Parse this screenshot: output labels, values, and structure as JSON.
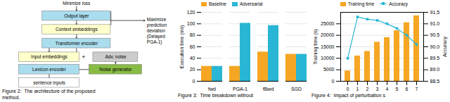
{
  "chart_data": [
    {
      "type": "diagram",
      "title": "Figure 2:  The architecture of the proposed",
      "subtitle": "method.",
      "annotations": [
        "Output layer",
        "Context embeddings",
        "Transformer encoder",
        "Input embeddings",
        "Lexicon encoder",
        "sentence inputs",
        "Adv. noise",
        "Noise generator",
        "+",
        "Minimize loss",
        "Maximize\nprediction\ndeviation\n(Delayed\nPGA-1)"
      ],
      "colors": [
        "#aaddee",
        "#ffffcc",
        "#aaddee",
        "#ffffcc",
        "#aaddee",
        "#ffffff",
        "#cccccc",
        "#88bb44"
      ]
    },
    {
      "type": "bar",
      "title": "Figure 3:  Time breakdown without",
      "categories": [
        "fwd",
        "PGA-1",
        "fBwd",
        "SGD"
      ],
      "series": [
        {
          "name": "Baseline",
          "color": "#f5a623",
          "values": [
            26,
            26,
            51,
            47
          ]
        },
        {
          "name": "Adversarial",
          "color": "#29b6d4",
          "values": [
            26,
            101,
            97,
            47
          ]
        }
      ],
      "ylabel": "Execution time (ms)",
      "ylim": [
        0,
        120
      ],
      "yticks": [
        0,
        20,
        40,
        60,
        80,
        100,
        120
      ],
      "grid": true,
      "legend": "upper left"
    },
    {
      "type": "bar",
      "title": "Figure 4:  Impact of perturbation s",
      "categories": [
        0,
        1,
        2,
        3,
        4,
        5,
        6,
        7
      ],
      "series": [
        {
          "name": "Training time",
          "type": "bar",
          "color": "#f5a623",
          "values": [
            4500,
            11000,
            13000,
            17000,
            19000,
            22000,
            25500,
            28500
          ]
        },
        {
          "name": "Accuracy",
          "type": "line",
          "color": "#29b6d4",
          "marker": "square",
          "axis": "y2",
          "values": [
            89.5,
            91.3,
            91.2,
            91.15,
            91.0,
            90.8,
            90.5,
            90.1
          ]
        }
      ],
      "ylabel": "Training time (s)",
      "y2label": "Accuracy",
      "ylim": [
        0,
        30000
      ],
      "yticks": [
        0,
        5000,
        10000,
        15000,
        20000,
        25000
      ],
      "y2lim": [
        88.5,
        91.5
      ],
      "y2ticks": [
        88.5,
        {
          "value": 89,
          "label": "89.0"
        },
        89.5,
        {
          "value": 90,
          "label": "90.0"
        },
        90.5,
        {
          "value": 91,
          "label": "91.0"
        },
        91.5
      ],
      "grid": true,
      "legend": "upper left"
    }
  ]
}
